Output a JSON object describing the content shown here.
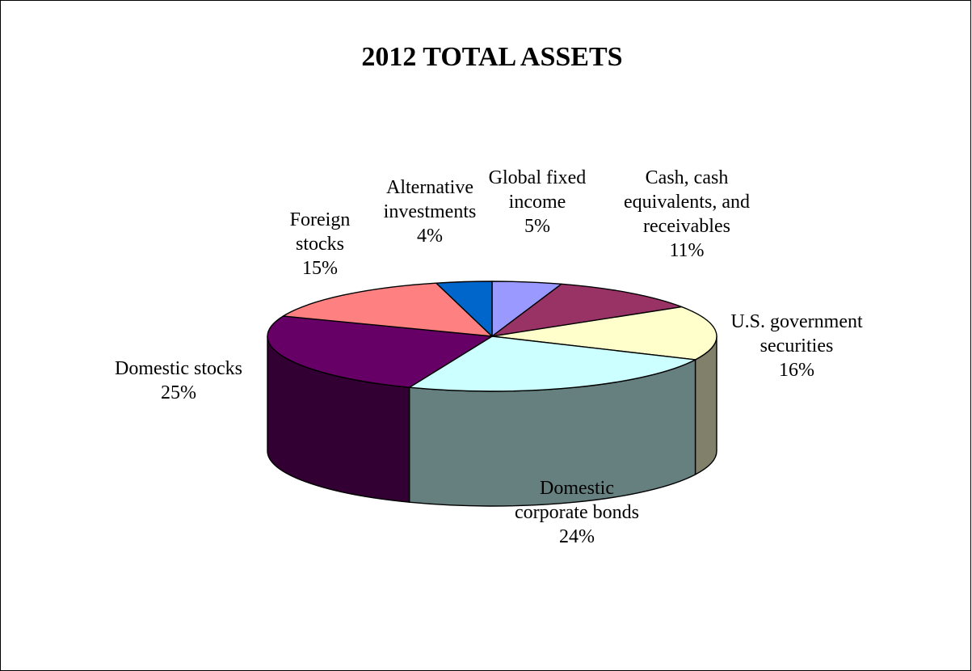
{
  "chart_data": {
    "type": "pie",
    "title": "2012 TOTAL ASSETS",
    "three_d": true,
    "slices": [
      {
        "label": "Global fixed income",
        "label_lines": [
          "Global fixed",
          "income",
          "5%"
        ],
        "value": 5,
        "pct_label": "5%",
        "color": "#9999FF",
        "side_color": "#5c5c99"
      },
      {
        "label": "Cash, cash equivalents, and receivables",
        "label_lines": [
          "Cash, cash",
          "equivalents, and",
          "receivables",
          "11%"
        ],
        "value": 11,
        "pct_label": "11%",
        "color": "#993366",
        "side_color": "#5c1f3d"
      },
      {
        "label": "U.S. government securities",
        "label_lines": [
          "U.S. government",
          "securities",
          "16%"
        ],
        "value": 16,
        "pct_label": "16%",
        "color": "#FFFFCC",
        "side_color": "#80806b"
      },
      {
        "label": "Domestic corporate bonds",
        "label_lines": [
          "Domestic",
          "corporate bonds",
          "24%"
        ],
        "value": 24,
        "pct_label": "24%",
        "color": "#CCFFFF",
        "side_color": "#668080"
      },
      {
        "label": "Domestic stocks",
        "label_lines": [
          "Domestic stocks",
          "25%"
        ],
        "value": 25,
        "pct_label": "25%",
        "color": "#660066",
        "side_color": "#330033"
      },
      {
        "label": "Foreign stocks",
        "label_lines": [
          "Foreign",
          "stocks",
          "15%"
        ],
        "value": 15,
        "pct_label": "15%",
        "color": "#FF8080",
        "side_color": "#994d4d"
      },
      {
        "label": "Alternative investments",
        "label_lines": [
          "Alternative",
          "investments",
          "4%"
        ],
        "value": 4,
        "pct_label": "4%",
        "color": "#0066CC",
        "side_color": "#003d7a"
      }
    ],
    "start_angle": "12 o'clock",
    "direction": "clockwise",
    "legend": "none",
    "data_labels": "category name and percentage"
  }
}
